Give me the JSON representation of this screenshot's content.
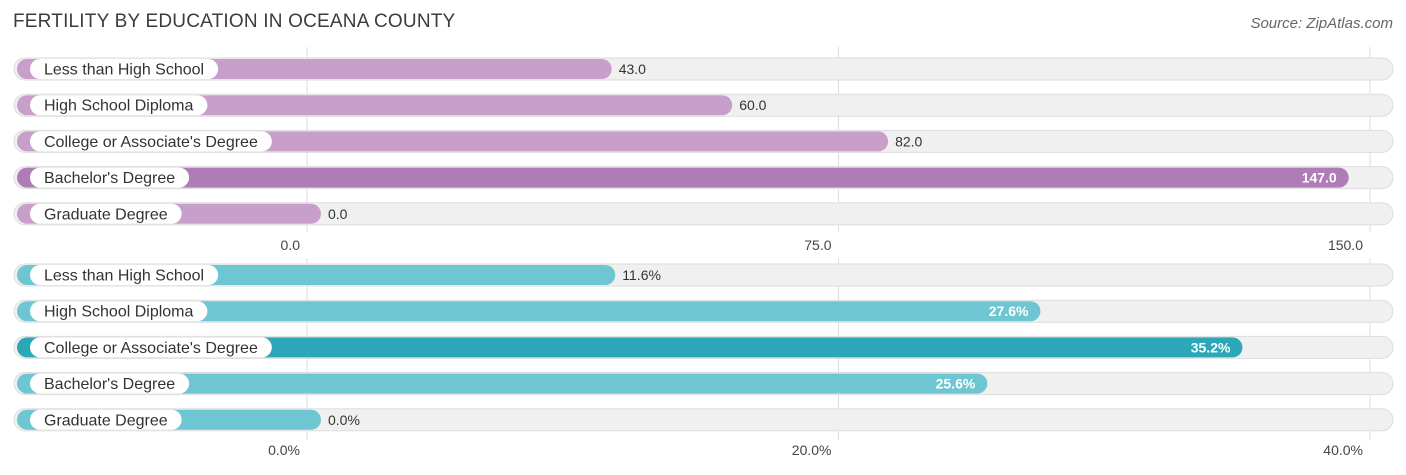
{
  "header": {
    "title": "FERTILITY BY EDUCATION IN OCEANA COUNTY",
    "source": "Source: ZipAtlas.com"
  },
  "colors": {
    "track": "#f0f0f0",
    "track_border": "#dddddd",
    "grid": "#dddddd",
    "purple_light": "#c89fcb",
    "purple_strong": "#b07cb8",
    "teal_light": "#6dc6d2",
    "teal_strong": "#2ba7b8"
  },
  "chart_data": [
    {
      "type": "bar",
      "orientation": "horizontal",
      "categories": [
        "Less than High School",
        "High School Diploma",
        "College or Associate's Degree",
        "Bachelor's Degree",
        "Graduate Degree"
      ],
      "values": [
        43.0,
        60.0,
        82.0,
        147.0,
        0.0
      ],
      "value_labels": [
        "43.0",
        "60.0",
        "82.0",
        "147.0",
        "0.0"
      ],
      "xlim": [
        0,
        150
      ],
      "ticks": [
        0,
        75,
        150
      ],
      "tick_labels": [
        "0.0",
        "75.0",
        "150.0"
      ],
      "color": "#c89fcb",
      "highlight_color": "#b07cb8",
      "grid": true
    },
    {
      "type": "bar",
      "orientation": "horizontal",
      "categories": [
        "Less than High School",
        "High School Diploma",
        "College or Associate's Degree",
        "Bachelor's Degree",
        "Graduate Degree"
      ],
      "values": [
        11.6,
        27.6,
        35.2,
        25.6,
        0.0
      ],
      "value_labels": [
        "11.6%",
        "27.6%",
        "35.2%",
        "25.6%",
        "0.0%"
      ],
      "xlim": [
        0,
        40
      ],
      "ticks": [
        0,
        20,
        40
      ],
      "tick_labels": [
        "0.0%",
        "20.0%",
        "40.0%"
      ],
      "color": "#6dc6d2",
      "highlight_color": "#2ba7b8",
      "grid": true
    }
  ]
}
